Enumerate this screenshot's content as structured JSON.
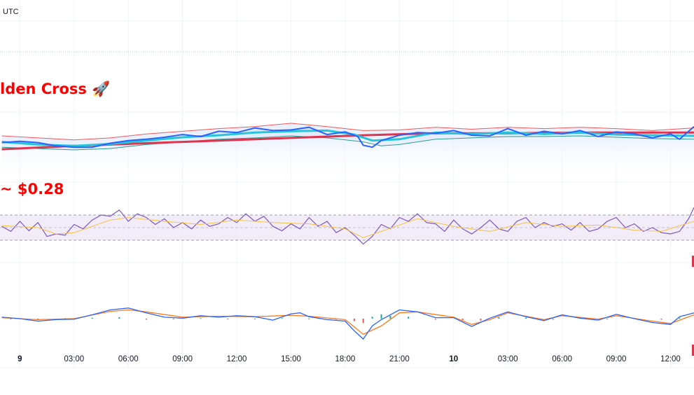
{
  "header": {
    "timezone": "UTC"
  },
  "annotations": {
    "cross_label": "lden Cross 🚀",
    "price_label": "~ $0.28"
  },
  "colors": {
    "background": "#ffffff",
    "price": "#2962ff",
    "ma_fast": "#26c6da",
    "ma_slow": "#e0334d",
    "band_upper": "#f05a5a",
    "band_lower": "#2e9e8f",
    "band_fill": "#e3ebfb",
    "rsi": "#7e57c2",
    "rsi_signal": "#f6c343",
    "rsi_band_fill": "#ede7f6",
    "macd": "#2962ff",
    "macd_signal": "#ff7a1a",
    "hist_up": "#26a69a",
    "hist_down": "#ef5350",
    "grid": "#f0f3fa",
    "annotation": "#ff0000",
    "marker": "#e0334d"
  },
  "chart_data": [
    {
      "type": "line",
      "panel": "price",
      "x_ticks": [
        "9",
        "03:00",
        "06:00",
        "09:00",
        "12:00",
        "15:00",
        "18:00",
        "21:00",
        "10",
        "03:00",
        "06:00",
        "09:00",
        "12:00"
      ],
      "x_hours": [
        0,
        3,
        6,
        9,
        12,
        15,
        18,
        21,
        24,
        27,
        30,
        33,
        36
      ],
      "x_range_hours": [
        -1.1,
        37.3
      ],
      "y_range": [
        0.24,
        0.345
      ],
      "series": [
        {
          "key": "price",
          "x": [
            -1,
            0,
            1,
            2,
            3,
            4,
            5,
            6,
            7,
            8,
            9,
            10,
            11,
            12,
            13,
            14,
            15,
            16,
            17,
            18,
            18.7,
            19,
            19.5,
            20,
            21,
            22,
            23,
            24,
            25,
            26,
            27,
            28,
            29,
            30,
            31,
            32,
            33,
            34,
            35,
            36,
            36.5,
            37.3
          ],
          "values": [
            0.288,
            0.289,
            0.288,
            0.2855,
            0.2845,
            0.2845,
            0.2875,
            0.2895,
            0.2905,
            0.292,
            0.294,
            0.2925,
            0.2965,
            0.2955,
            0.299,
            0.297,
            0.2975,
            0.2995,
            0.294,
            0.296,
            0.2925,
            0.286,
            0.2845,
            0.2895,
            0.2935,
            0.2955,
            0.295,
            0.297,
            0.2935,
            0.293,
            0.2985,
            0.2935,
            0.2965,
            0.2945,
            0.297,
            0.2925,
            0.296,
            0.2945,
            0.2915,
            0.2945,
            0.2905,
            0.3
          ]
        },
        {
          "key": "ma_fast",
          "x": [
            -1,
            1,
            3,
            5,
            7,
            9,
            11,
            13,
            15,
            17,
            18.5,
            19.5,
            21,
            23,
            25,
            27,
            29,
            31,
            33,
            35,
            37.3
          ],
          "values": [
            0.2885,
            0.2865,
            0.2855,
            0.287,
            0.2895,
            0.292,
            0.2935,
            0.2955,
            0.2965,
            0.297,
            0.294,
            0.2895,
            0.2905,
            0.2955,
            0.2945,
            0.2955,
            0.2945,
            0.2955,
            0.294,
            0.2935,
            0.293
          ]
        },
        {
          "key": "ma_slow",
          "x": [
            -1,
            3,
            7,
            11,
            15,
            19,
            23,
            27,
            31,
            35,
            37.3
          ],
          "values": [
            0.283,
            0.2855,
            0.2875,
            0.2895,
            0.2915,
            0.2935,
            0.295,
            0.295,
            0.2955,
            0.2955,
            0.2955
          ]
        },
        {
          "key": "band_upper",
          "x": [
            -1,
            1,
            3,
            5,
            7,
            9,
            11,
            13,
            15,
            17,
            19,
            21,
            23,
            25,
            27,
            29,
            31,
            33,
            35,
            37.3
          ],
          "values": [
            0.293,
            0.2915,
            0.29,
            0.2915,
            0.2945,
            0.2965,
            0.2985,
            0.3,
            0.3025,
            0.3,
            0.297,
            0.2975,
            0.2995,
            0.298,
            0.2995,
            0.2985,
            0.2995,
            0.2985,
            0.297,
            0.299
          ]
        },
        {
          "key": "band_lower",
          "x": [
            -1,
            1,
            3,
            5,
            7,
            9,
            11,
            13,
            15,
            17,
            19,
            20,
            21,
            23,
            25,
            27,
            29,
            31,
            33,
            35,
            37.3
          ],
          "values": [
            0.2845,
            0.2835,
            0.2825,
            0.2835,
            0.2865,
            0.2885,
            0.2905,
            0.2915,
            0.293,
            0.2915,
            0.2885,
            0.2855,
            0.2865,
            0.2905,
            0.2915,
            0.2925,
            0.2925,
            0.293,
            0.292,
            0.291,
            0.2905
          ]
        }
      ]
    },
    {
      "type": "line",
      "panel": "rsi",
      "y_range": [
        0,
        100
      ],
      "bands": [
        30,
        70
      ],
      "series": [
        {
          "key": "rsi",
          "x": [
            -1,
            -0.5,
            0,
            0.5,
            1,
            1.5,
            2,
            2.5,
            3,
            3.5,
            4,
            4.5,
            5,
            5.5,
            6,
            6.5,
            7,
            7.5,
            8,
            8.5,
            9,
            9.5,
            10,
            10.5,
            11,
            11.5,
            12,
            12.5,
            13,
            13.5,
            14,
            14.5,
            15,
            15.5,
            16,
            16.5,
            17,
            17.5,
            18,
            18.5,
            19,
            19.5,
            20,
            20.5,
            21,
            21.5,
            22,
            22.5,
            23,
            23.5,
            24,
            24.5,
            25,
            25.5,
            26,
            26.5,
            27,
            27.5,
            28,
            28.5,
            29,
            29.5,
            30,
            30.5,
            31,
            31.5,
            32,
            32.5,
            33,
            33.5,
            34,
            34.5,
            35,
            35.5,
            36,
            36.5,
            37,
            37.3
          ],
          "values": [
            52,
            44,
            60,
            45,
            58,
            36,
            40,
            38,
            55,
            48,
            62,
            70,
            68,
            78,
            60,
            72,
            66,
            55,
            64,
            50,
            58,
            48,
            62,
            52,
            56,
            66,
            58,
            72,
            60,
            68,
            52,
            45,
            56,
            48,
            66,
            52,
            60,
            42,
            50,
            38,
            24,
            36,
            55,
            48,
            66,
            60,
            72,
            58,
            56,
            44,
            62,
            48,
            40,
            50,
            62,
            48,
            44,
            60,
            66,
            50,
            58,
            52,
            56,
            46,
            58,
            44,
            48,
            60,
            66,
            50,
            56,
            44,
            50,
            42,
            40,
            44,
            64,
            82
          ]
        },
        {
          "key": "rsi_signal",
          "x": [
            -1,
            1,
            2,
            3,
            5,
            6,
            8,
            10,
            12,
            14,
            16,
            18,
            19,
            20,
            22,
            24,
            26,
            28,
            30,
            32,
            34,
            35.5,
            37.3
          ],
          "values": [
            53,
            50,
            40,
            42,
            62,
            66,
            60,
            55,
            62,
            58,
            56,
            48,
            34,
            44,
            64,
            52,
            44,
            58,
            52,
            54,
            46,
            44,
            60
          ]
        }
      ]
    },
    {
      "type": "line",
      "panel": "macd",
      "y_range": [
        -0.0065,
        0.0065
      ],
      "series": [
        {
          "key": "macd",
          "x": [
            -1,
            0,
            1,
            2,
            3,
            4,
            5,
            6,
            7,
            8,
            9,
            10,
            11,
            12,
            13,
            14,
            15,
            15.5,
            16,
            17,
            18,
            18.5,
            19,
            19.5,
            20,
            21,
            22,
            23,
            24,
            25,
            26,
            27,
            28,
            29,
            30,
            31,
            32,
            33,
            34,
            35,
            36,
            36.5,
            37.3
          ],
          "values": [
            0.0003,
            0.0,
            -0.0005,
            -0.0002,
            -0.0001,
            0.0008,
            0.0018,
            0.0022,
            0.0012,
            0.0003,
            0.0001,
            0.0006,
            0.0003,
            0.0006,
            0.0004,
            -0.0003,
            0.001,
            0.0012,
            0.0004,
            -0.0002,
            -0.0005,
            -0.0025,
            -0.0042,
            -0.0015,
            -0.0002,
            0.0018,
            0.0014,
            0.0002,
            0.0002,
            -0.0016,
            0.0001,
            0.0014,
            0.0004,
            -0.0004,
            0.0008,
            0.0001,
            -0.0003,
            0.0009,
            0.0,
            -0.0008,
            -0.0012,
            0.0004,
            0.0012
          ]
        },
        {
          "key": "macd_signal",
          "x": [
            -1,
            1,
            3,
            5,
            6,
            7,
            9,
            11,
            13,
            15,
            16,
            18,
            19,
            20,
            21,
            22,
            24,
            25,
            26,
            27,
            29,
            30,
            32,
            33,
            35,
            36,
            37.3
          ],
          "values": [
            0.0002,
            -0.0002,
            0.0,
            0.0015,
            0.0018,
            0.0014,
            0.0003,
            0.0005,
            0.0004,
            0.0007,
            0.0005,
            -0.0002,
            -0.0032,
            -0.0015,
            0.0012,
            0.0014,
            0.0003,
            -0.0012,
            -0.0002,
            0.0012,
            -0.0002,
            0.0006,
            -0.0001,
            0.0006,
            -0.0005,
            -0.001,
            0.0008
          ]
        }
      ],
      "histogram": {
        "key": "hist",
        "x": [
          -0.5,
          1,
          2.5,
          4,
          5.5,
          7,
          8.5,
          10,
          11.5,
          13,
          14.5,
          16,
          17.5,
          18.5,
          19,
          19.5,
          20,
          20.5,
          21.5,
          23,
          24.5,
          25.5,
          26.5,
          28,
          29.5,
          31,
          32.5,
          34,
          35.5,
          36.5
        ],
        "values": [
          -0.0001,
          -0.0002,
          0.0001,
          0.0002,
          0.0003,
          -0.0002,
          -0.0001,
          0.0001,
          -0.0001,
          0.0,
          0.0001,
          -0.0001,
          -0.0002,
          -0.0005,
          -0.0009,
          0.0004,
          0.0009,
          0.0006,
          0.0004,
          -0.0002,
          -0.0003,
          -0.0004,
          0.0003,
          0.0002,
          -0.0002,
          0.0002,
          -0.0001,
          0.0001,
          -0.0002,
          0.0002
        ]
      }
    }
  ]
}
